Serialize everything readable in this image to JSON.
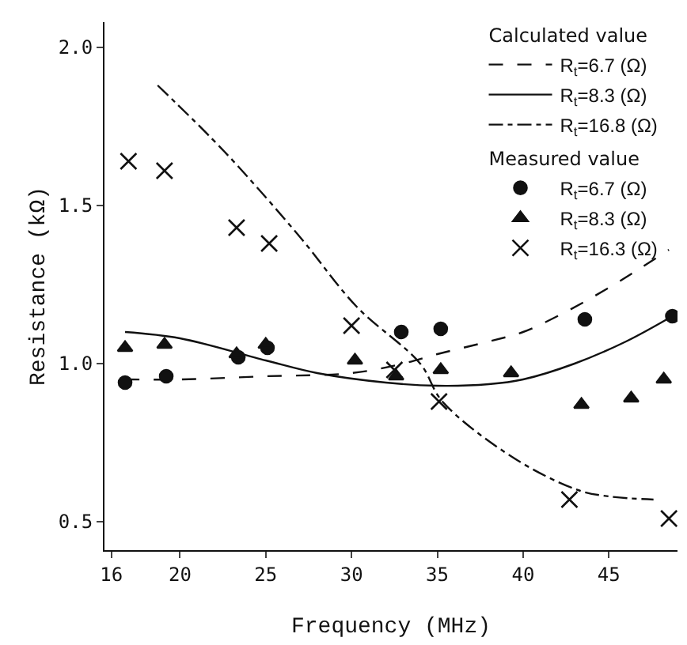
{
  "chart_data": {
    "type": "line",
    "xlabel": "Frequency (MHz)",
    "ylabel": "Resistance (kΩ)",
    "xlim": [
      15.6,
      49
    ],
    "ylim": [
      0.41,
      2.08
    ],
    "xticks": [
      16,
      20,
      25,
      30,
      35,
      40,
      45
    ],
    "yticks": [
      {
        "value": 0.5,
        "label": "0.5"
      },
      {
        "value": 1,
        "label": "1.0"
      },
      {
        "value": 1.5,
        "label": "1.5"
      },
      {
        "value": 2,
        "label": "2.0"
      }
    ],
    "annotations": [
      "Calculated value",
      "Measured value"
    ],
    "legend": "top right",
    "grid": false,
    "series": [
      {
        "name": "R$_{t}$=6.7 (Ω)",
        "line_style": "dashed",
        "marker": "none",
        "color": "#111111",
        "x": [
          16.8,
          20,
          25,
          30,
          33,
          35,
          38,
          40,
          42,
          45,
          48.5
        ],
        "values": [
          0.95,
          0.95,
          0.96,
          0.97,
          1.0,
          1.03,
          1.07,
          1.1,
          1.15,
          1.24,
          1.36
        ]
      },
      {
        "name": "R$_{t}$=8.3 (Ω)",
        "line_style": "solid",
        "marker": "none",
        "color": "#111111",
        "x": [
          16.8,
          20,
          25,
          28,
          32,
          35,
          38,
          40,
          43,
          46,
          48.7
        ],
        "values": [
          1.1,
          1.08,
          1.01,
          0.97,
          0.94,
          0.93,
          0.935,
          0.95,
          1.0,
          1.07,
          1.15
        ]
      },
      {
        "name": "R$_{t}$=16.8 (Ω)",
        "line_style": "dashdot",
        "marker": "none",
        "color": "#111111",
        "x": [
          18.7,
          22.6,
          27.0,
          30.3,
          34.0,
          35.3,
          39.5,
          43.2,
          45.0,
          47.6
        ],
        "values": [
          1.88,
          1.67,
          1.4,
          1.18,
          1.0,
          0.88,
          0.7,
          0.6,
          0.58,
          0.57
        ]
      },
      {
        "name": "R$_{t}$=6.7 (Ω)",
        "type": "scatter",
        "marker": "circle",
        "color": "#111111",
        "x": [
          16.8,
          19.2,
          23.4,
          25.1,
          32.9,
          35.2,
          43.6,
          48.7
        ],
        "values": [
          0.94,
          0.96,
          1.02,
          1.05,
          1.1,
          1.11,
          1.14,
          1.15
        ]
      },
      {
        "name": "R$_{t}$=8.3 (Ω)",
        "type": "scatter",
        "marker": "triangle",
        "color": "#111111",
        "x": [
          16.8,
          19.1,
          23.3,
          25.0,
          30.2,
          32.6,
          35.2,
          39.3,
          43.4,
          46.3,
          48.2
        ],
        "values": [
          1.05,
          1.06,
          1.03,
          1.06,
          1.01,
          0.96,
          0.98,
          0.97,
          0.87,
          0.89,
          0.95
        ]
      },
      {
        "name": "R$_{t}$=16.3 (Ω)",
        "type": "scatter",
        "marker": "cross",
        "color": "#111111",
        "x": [
          17.0,
          19.1,
          23.3,
          25.2,
          30.0,
          32.5,
          35.1,
          42.7,
          48.5
        ],
        "values": [
          1.64,
          1.61,
          1.43,
          1.38,
          1.12,
          0.98,
          0.88,
          0.57,
          0.51
        ]
      }
    ]
  }
}
